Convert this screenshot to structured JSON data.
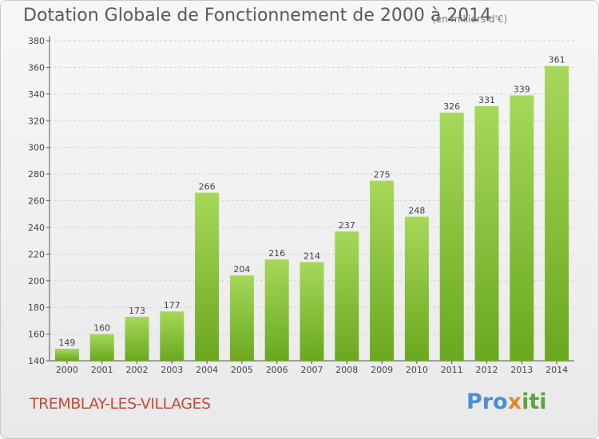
{
  "header": {
    "title": "Dotation Globale de Fonctionnement de 2000 à 2014",
    "unit": "(en milliers d'€)"
  },
  "footer": {
    "commune": "TREMBLAY-LES-VILLAGES",
    "logo_parts": [
      "Pro",
      "x",
      "iti"
    ]
  },
  "colors": {
    "bar_light": "#a6d85a",
    "bar_dark": "#6aa81f",
    "grid": "#d0d0d0",
    "commune_text": "#c64a34"
  },
  "chart_data": {
    "type": "bar",
    "title": "Dotation Globale de Fonctionnement de 2000 à 2014",
    "subtitle": "(en milliers d'€)",
    "xlabel": "",
    "ylabel": "",
    "categories": [
      "2000",
      "2001",
      "2002",
      "2003",
      "2004",
      "2005",
      "2006",
      "2007",
      "2008",
      "2009",
      "2010",
      "2011",
      "2012",
      "2013",
      "2014"
    ],
    "values": [
      149,
      160,
      173,
      177,
      266,
      204,
      216,
      214,
      237,
      275,
      248,
      326,
      331,
      339,
      361
    ],
    "ylim": [
      140,
      380
    ],
    "yticks": [
      140,
      160,
      180,
      200,
      220,
      240,
      260,
      280,
      300,
      320,
      340,
      360,
      380
    ],
    "grid": true,
    "legend": "none"
  }
}
